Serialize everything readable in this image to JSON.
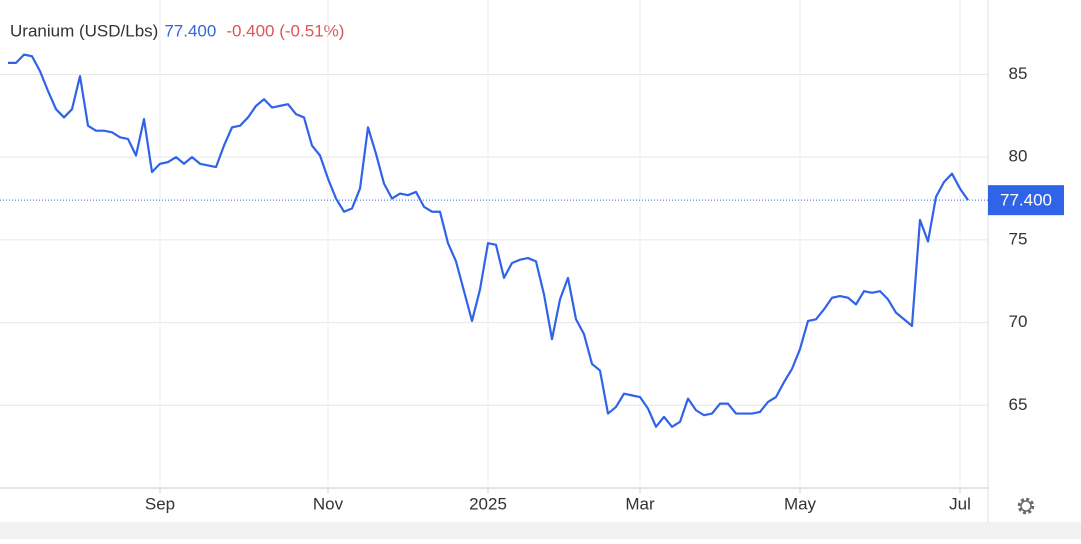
{
  "chart_data": {
    "type": "line",
    "title": "Uranium (USD/Lbs)",
    "price": "77.400",
    "change": "-0.400 (-0.51%)",
    "last_label": "77.400",
    "categories": [
      null,
      null,
      null,
      null,
      null,
      null,
      null,
      null,
      null,
      null,
      null,
      null,
      null,
      null,
      null,
      null,
      null,
      null,
      null,
      "Sep",
      null,
      null,
      null,
      null,
      null,
      null,
      null,
      null,
      null,
      null,
      null,
      null,
      null,
      null,
      null,
      null,
      null,
      null,
      null,
      null,
      "Nov",
      null,
      null,
      null,
      null,
      null,
      null,
      null,
      null,
      null,
      null,
      null,
      null,
      null,
      null,
      null,
      null,
      null,
      null,
      null,
      "2025",
      null,
      null,
      null,
      null,
      null,
      null,
      null,
      null,
      null,
      null,
      null,
      null,
      null,
      null,
      null,
      null,
      null,
      null,
      "Mar",
      null,
      null,
      null,
      null,
      null,
      null,
      null,
      null,
      null,
      null,
      null,
      null,
      null,
      null,
      null,
      null,
      null,
      null,
      null,
      "May",
      null,
      null,
      null,
      null,
      null,
      null,
      null,
      null,
      null,
      null,
      null,
      null,
      null,
      null,
      null,
      null,
      null,
      null,
      null,
      "Jul",
      null
    ],
    "series": [
      {
        "name": "Uranium",
        "color": "#2f63e8",
        "values": [
          85.7,
          85.7,
          86.2,
          86.1,
          85.2,
          84.0,
          82.9,
          82.4,
          82.9,
          84.9,
          81.9,
          81.6,
          81.6,
          81.5,
          81.2,
          81.1,
          80.1,
          82.3,
          79.1,
          79.6,
          79.7,
          80.0,
          79.6,
          80.0,
          79.6,
          79.5,
          79.4,
          80.7,
          81.8,
          81.9,
          82.4,
          83.1,
          83.5,
          83.0,
          83.1,
          83.2,
          82.6,
          82.4,
          80.7,
          80.1,
          78.7,
          77.5,
          76.7,
          76.9,
          78.1,
          81.8,
          80.2,
          78.4,
          77.5,
          77.8,
          77.7,
          77.9,
          77.0,
          76.7,
          76.7,
          74.8,
          73.7,
          71.9,
          70.1,
          72.0,
          74.8,
          74.7,
          72.7,
          73.6,
          73.8,
          73.9,
          73.7,
          71.7,
          69.0,
          71.4,
          72.7,
          70.2,
          69.3,
          67.5,
          67.1,
          64.5,
          64.9,
          65.7,
          65.6,
          65.5,
          64.8,
          63.7,
          64.3,
          63.7,
          64.0,
          65.4,
          64.7,
          64.4,
          64.5,
          65.1,
          65.1,
          64.5,
          64.5,
          64.5,
          64.6,
          65.2,
          65.5,
          66.4,
          67.2,
          68.4,
          70.1,
          70.2,
          70.8,
          71.5,
          71.6,
          71.5,
          71.1,
          71.9,
          71.8,
          71.9,
          71.4,
          70.6,
          70.2,
          69.8,
          76.2,
          74.9,
          77.6,
          78.5,
          79.0,
          78.1,
          77.4
        ]
      }
    ],
    "ylim": [
      60,
      89.5
    ],
    "yticks": [
      65,
      70,
      75,
      80,
      85
    ],
    "grid": true
  }
}
